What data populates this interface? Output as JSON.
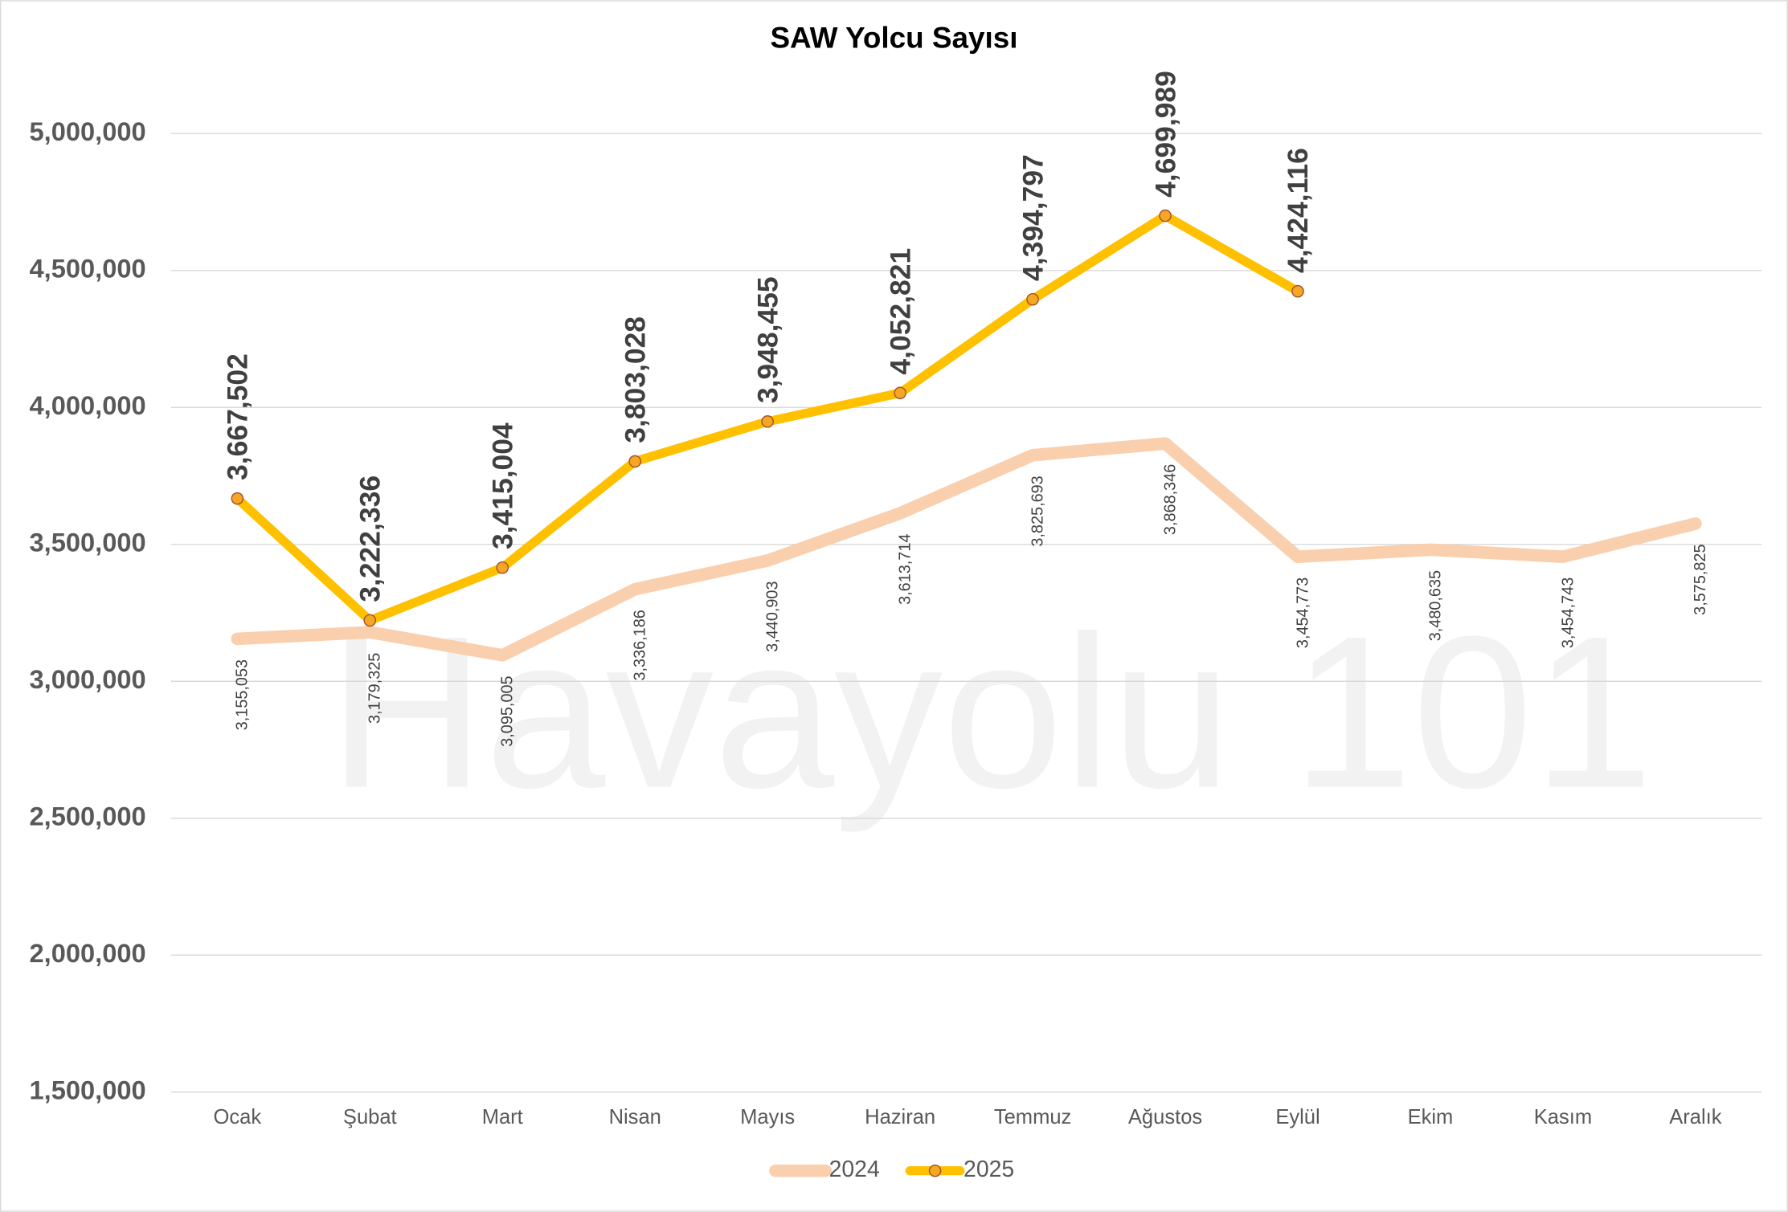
{
  "chart_data": {
    "type": "line",
    "title": "SAW Yolcu Sayısı",
    "watermark": "Havayolu 101",
    "categories": [
      "Ocak",
      "Şubat",
      "Mart",
      "Nisan",
      "Mayıs",
      "Haziran",
      "Temmuz",
      "Ağustos",
      "Eylül",
      "Ekim",
      "Kasım",
      "Aralık"
    ],
    "series": [
      {
        "name": "2024",
        "color": "#f9cfae",
        "values": [
          3155053,
          3179325,
          3095005,
          3336186,
          3440903,
          3613714,
          3825693,
          3868346,
          3454773,
          3480635,
          3454743,
          3575825
        ],
        "value_labels": [
          "3,155,053",
          "3,179,325",
          "3,095,005",
          "3,336,186",
          "3,440,903",
          "3,613,714",
          "3,825,693",
          "3,868,346",
          "3,454,773",
          "3,480,635",
          "3,454,743",
          "3,575,825"
        ]
      },
      {
        "name": "2025",
        "color": "#ffc000",
        "marker": true,
        "values": [
          3667502,
          3222336,
          3415004,
          3803028,
          3948455,
          4052821,
          4394797,
          4699989,
          4424116,
          null,
          null,
          null
        ],
        "value_labels": [
          "3,667,502",
          "3,222,336",
          "3,415,004",
          "3,803,028",
          "3,948,455",
          "4,052,821",
          "4,394,797",
          "4,699,989",
          "4,424,116",
          null,
          null,
          null
        ]
      }
    ],
    "ylim": [
      1500000,
      5000000
    ],
    "yticks": [
      {
        "value": 1500000,
        "label": "1,500,000"
      },
      {
        "value": 2000000,
        "label": "2,000,000"
      },
      {
        "value": 2500000,
        "label": "2,500,000"
      },
      {
        "value": 3000000,
        "label": "3,000,000"
      },
      {
        "value": 3500000,
        "label": "3,500,000"
      },
      {
        "value": 4000000,
        "label": "4,000,000"
      },
      {
        "value": 4500000,
        "label": "4,500,000"
      },
      {
        "value": 5000000,
        "label": "5,000,000"
      }
    ],
    "grid": true,
    "legend": "bottom"
  }
}
